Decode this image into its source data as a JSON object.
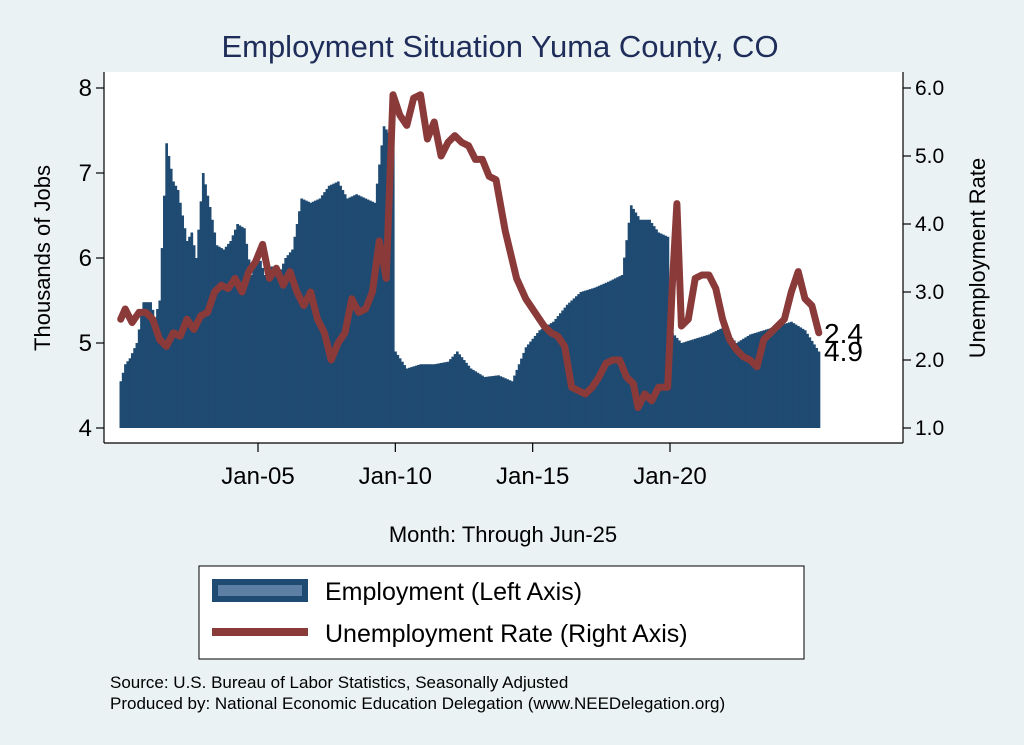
{
  "chart_data": {
    "type": "bar+line",
    "title": "Employment Situation Yuma  County, CO",
    "xlabel": "Month: Through Jun-25",
    "ylabel_left": "Thousands of Jobs",
    "ylabel_right": "Unemployment Rate",
    "x_ticks": [
      "Jan-05",
      "Jan-10",
      "Jan-15",
      "Jan-20"
    ],
    "x_range": [
      "Jan-00",
      "Dec-28"
    ],
    "ylim_left": [
      4,
      8
    ],
    "ylim_right": [
      1.0,
      6.0
    ],
    "yticks_left": [
      "4",
      "5",
      "6",
      "7",
      "8"
    ],
    "yticks_right": [
      "1.0",
      "2.0",
      "3.0",
      "4.0",
      "5.0",
      "6.0"
    ],
    "grid": false,
    "legend_position": "bottom",
    "series": [
      {
        "name": "Employment (Left Axis)",
        "kind": "bar",
        "axis": "left",
        "color": "#1f4a72",
        "points": [
          [
            "2000-01",
            4.55
          ],
          [
            "2000-03",
            4.75
          ],
          [
            "2000-05",
            4.82
          ],
          [
            "2000-08",
            5.0
          ],
          [
            "2000-11",
            5.48
          ],
          [
            "2001-02",
            5.48
          ],
          [
            "2001-04",
            5.3
          ],
          [
            "2001-06",
            5.5
          ],
          [
            "2001-09",
            7.35
          ],
          [
            "2001-12",
            6.9
          ],
          [
            "2002-02",
            6.8
          ],
          [
            "2002-04",
            6.5
          ],
          [
            "2002-06",
            6.2
          ],
          [
            "2002-08",
            6.3
          ],
          [
            "2002-10",
            6.0
          ],
          [
            "2003-01",
            7.0
          ],
          [
            "2003-04",
            6.6
          ],
          [
            "2003-07",
            6.15
          ],
          [
            "2003-10",
            6.1
          ],
          [
            "2004-01",
            6.2
          ],
          [
            "2004-04",
            6.4
          ],
          [
            "2004-07",
            6.35
          ],
          [
            "2004-10",
            5.8
          ],
          [
            "2005-01",
            6.05
          ],
          [
            "2005-04",
            5.8
          ],
          [
            "2005-07",
            5.9
          ],
          [
            "2005-10",
            5.8
          ],
          [
            "2006-01",
            6.0
          ],
          [
            "2006-04",
            6.1
          ],
          [
            "2006-08",
            6.7
          ],
          [
            "2006-12",
            6.65
          ],
          [
            "2007-04",
            6.7
          ],
          [
            "2007-08",
            6.85
          ],
          [
            "2007-12",
            6.9
          ],
          [
            "2008-04",
            6.7
          ],
          [
            "2008-08",
            6.75
          ],
          [
            "2008-12",
            6.7
          ],
          [
            "2009-04",
            6.65
          ],
          [
            "2009-08",
            7.55
          ],
          [
            "2009-12",
            7.4
          ],
          [
            "2010-01",
            4.9
          ],
          [
            "2010-06",
            4.7
          ],
          [
            "2010-12",
            4.75
          ],
          [
            "2011-06",
            4.75
          ],
          [
            "2011-12",
            4.78
          ],
          [
            "2012-04",
            4.9
          ],
          [
            "2012-10",
            4.7
          ],
          [
            "2013-04",
            4.6
          ],
          [
            "2013-10",
            4.62
          ],
          [
            "2014-04",
            4.55
          ],
          [
            "2014-10",
            4.95
          ],
          [
            "2015-04",
            5.15
          ],
          [
            "2015-10",
            5.25
          ],
          [
            "2016-04",
            5.45
          ],
          [
            "2016-10",
            5.6
          ],
          [
            "2017-04",
            5.65
          ],
          [
            "2017-10",
            5.72
          ],
          [
            "2018-04",
            5.8
          ],
          [
            "2018-08",
            6.62
          ],
          [
            "2018-12",
            6.45
          ],
          [
            "2019-04",
            6.45
          ],
          [
            "2019-08",
            6.3
          ],
          [
            "2019-12",
            6.25
          ],
          [
            "2020-01",
            5.15
          ],
          [
            "2020-06",
            5.0
          ],
          [
            "2020-12",
            5.05
          ],
          [
            "2021-06",
            5.1
          ],
          [
            "2021-12",
            5.18
          ],
          [
            "2022-06",
            5.0
          ],
          [
            "2022-12",
            5.1
          ],
          [
            "2023-06",
            5.15
          ],
          [
            "2023-12",
            5.2
          ],
          [
            "2024-06",
            5.25
          ],
          [
            "2024-12",
            5.15
          ],
          [
            "2025-06",
            4.9
          ]
        ],
        "end_label": "4.9"
      },
      {
        "name": "Unemployment Rate (Right Axis)",
        "kind": "line",
        "axis": "right",
        "color": "#8b3a3a",
        "points": [
          [
            "2000-01",
            2.6
          ],
          [
            "2000-03",
            2.75
          ],
          [
            "2000-06",
            2.55
          ],
          [
            "2000-09",
            2.7
          ],
          [
            "2000-12",
            2.7
          ],
          [
            "2001-03",
            2.6
          ],
          [
            "2001-06",
            2.3
          ],
          [
            "2001-09",
            2.2
          ],
          [
            "2001-12",
            2.4
          ],
          [
            "2002-03",
            2.35
          ],
          [
            "2002-06",
            2.6
          ],
          [
            "2002-09",
            2.45
          ],
          [
            "2002-12",
            2.65
          ],
          [
            "2003-03",
            2.7
          ],
          [
            "2003-06",
            3.0
          ],
          [
            "2003-09",
            3.1
          ],
          [
            "2003-12",
            3.05
          ],
          [
            "2004-03",
            3.2
          ],
          [
            "2004-06",
            3.0
          ],
          [
            "2004-09",
            3.3
          ],
          [
            "2004-12",
            3.45
          ],
          [
            "2005-03",
            3.7
          ],
          [
            "2005-06",
            3.2
          ],
          [
            "2005-09",
            3.35
          ],
          [
            "2005-12",
            3.1
          ],
          [
            "2006-03",
            3.3
          ],
          [
            "2006-06",
            3.0
          ],
          [
            "2006-09",
            2.8
          ],
          [
            "2006-12",
            3.0
          ],
          [
            "2007-03",
            2.6
          ],
          [
            "2007-06",
            2.4
          ],
          [
            "2007-09",
            2.0
          ],
          [
            "2007-12",
            2.25
          ],
          [
            "2008-03",
            2.4
          ],
          [
            "2008-06",
            2.9
          ],
          [
            "2008-09",
            2.7
          ],
          [
            "2008-12",
            2.75
          ],
          [
            "2009-03",
            3.0
          ],
          [
            "2009-06",
            3.75
          ],
          [
            "2009-09",
            3.2
          ],
          [
            "2009-12",
            5.9
          ],
          [
            "2010-03",
            5.6
          ],
          [
            "2010-06",
            5.45
          ],
          [
            "2010-09",
            5.85
          ],
          [
            "2010-12",
            5.9
          ],
          [
            "2011-03",
            5.25
          ],
          [
            "2011-06",
            5.5
          ],
          [
            "2011-09",
            5.0
          ],
          [
            "2011-12",
            5.2
          ],
          [
            "2012-03",
            5.3
          ],
          [
            "2012-06",
            5.2
          ],
          [
            "2012-09",
            5.15
          ],
          [
            "2012-12",
            4.95
          ],
          [
            "2013-03",
            4.95
          ],
          [
            "2013-06",
            4.7
          ],
          [
            "2013-09",
            4.65
          ],
          [
            "2014-01",
            3.9
          ],
          [
            "2014-06",
            3.2
          ],
          [
            "2014-10",
            2.9
          ],
          [
            "2015-03",
            2.65
          ],
          [
            "2015-06",
            2.5
          ],
          [
            "2015-09",
            2.4
          ],
          [
            "2015-12",
            2.35
          ],
          [
            "2016-03",
            2.2
          ],
          [
            "2016-06",
            1.6
          ],
          [
            "2016-09",
            1.55
          ],
          [
            "2016-12",
            1.5
          ],
          [
            "2017-03",
            1.6
          ],
          [
            "2017-06",
            1.75
          ],
          [
            "2017-09",
            1.95
          ],
          [
            "2017-12",
            2.0
          ],
          [
            "2018-03",
            2.0
          ],
          [
            "2018-06",
            1.75
          ],
          [
            "2018-09",
            1.65
          ],
          [
            "2018-11",
            1.3
          ],
          [
            "2019-02",
            1.5
          ],
          [
            "2019-05",
            1.4
          ],
          [
            "2019-08",
            1.6
          ],
          [
            "2019-12",
            1.6
          ],
          [
            "2020-02",
            3.1
          ],
          [
            "2020-04",
            4.3
          ],
          [
            "2020-06",
            2.5
          ],
          [
            "2020-09",
            2.6
          ],
          [
            "2020-12",
            3.2
          ],
          [
            "2021-03",
            3.25
          ],
          [
            "2021-06",
            3.25
          ],
          [
            "2021-09",
            3.05
          ],
          [
            "2021-12",
            2.6
          ],
          [
            "2022-03",
            2.3
          ],
          [
            "2022-06",
            2.15
          ],
          [
            "2022-09",
            2.05
          ],
          [
            "2022-12",
            2.0
          ],
          [
            "2023-03",
            1.9
          ],
          [
            "2023-06",
            2.3
          ],
          [
            "2023-09",
            2.4
          ],
          [
            "2023-12",
            2.5
          ],
          [
            "2024-03",
            2.6
          ],
          [
            "2024-06",
            3.0
          ],
          [
            "2024-09",
            3.3
          ],
          [
            "2024-12",
            2.9
          ],
          [
            "2025-03",
            2.8
          ],
          [
            "2025-06",
            2.4
          ]
        ],
        "end_label": "2.4"
      }
    ]
  },
  "legend": {
    "employment_label": "Employment (Left Axis)",
    "unemployment_label": "Unemployment Rate (Right Axis)"
  },
  "source": {
    "line1": "Source: U.S. Bureau of Labor Statistics, Seasonally Adjusted",
    "line2": "Produced by: National Economic Education Delegation (www.NEEDelegation.org)"
  },
  "colors": {
    "background": "#eaf2f3",
    "plot_background": "#ffffff",
    "title": "#1f2d5a"
  }
}
